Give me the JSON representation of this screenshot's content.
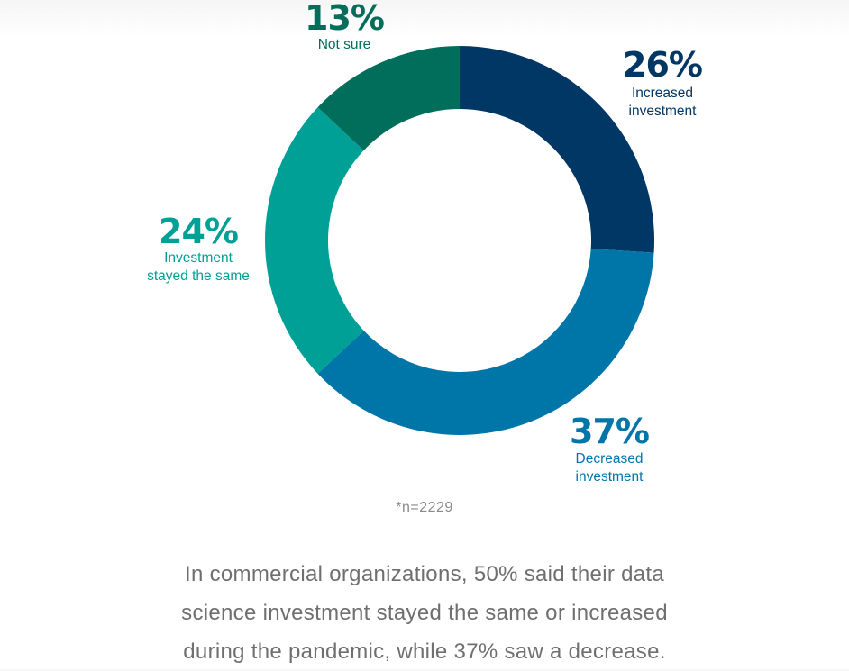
{
  "chart_data": {
    "type": "pie",
    "donut": true,
    "categories": [
      "Increased investment",
      "Decreased investment",
      "Investment stayed the same",
      "Not sure"
    ],
    "values": [
      26,
      37,
      24,
      13
    ],
    "colors": [
      "#003764",
      "#0076a8",
      "#00a096",
      "#006e5a"
    ],
    "slices": [
      {
        "id": "increased",
        "value": 26,
        "value_label": "26%",
        "label_lines": [
          "Increased",
          "investment"
        ],
        "color": "#003764",
        "text_color": "#003764"
      },
      {
        "id": "decreased",
        "value": 37,
        "value_label": "37%",
        "label_lines": [
          "Decreased",
          "investment"
        ],
        "color": "#0076a8",
        "text_color": "#0076a8"
      },
      {
        "id": "same",
        "value": 24,
        "value_label": "24%",
        "label_lines": [
          "Investment",
          "stayed the same"
        ],
        "color": "#00a096",
        "text_color": "#00a096"
      },
      {
        "id": "notsure",
        "value": 13,
        "value_label": "13%",
        "label_lines": [
          "Not sure"
        ],
        "color": "#006e5a",
        "text_color": "#006e5a"
      }
    ]
  },
  "note": "*n=2229",
  "caption": {
    "lines": [
      "In commercial organizations, 50% said their data",
      "science investment stayed the same or increased",
      "during the pandemic, while 37% saw a decrease."
    ]
  }
}
